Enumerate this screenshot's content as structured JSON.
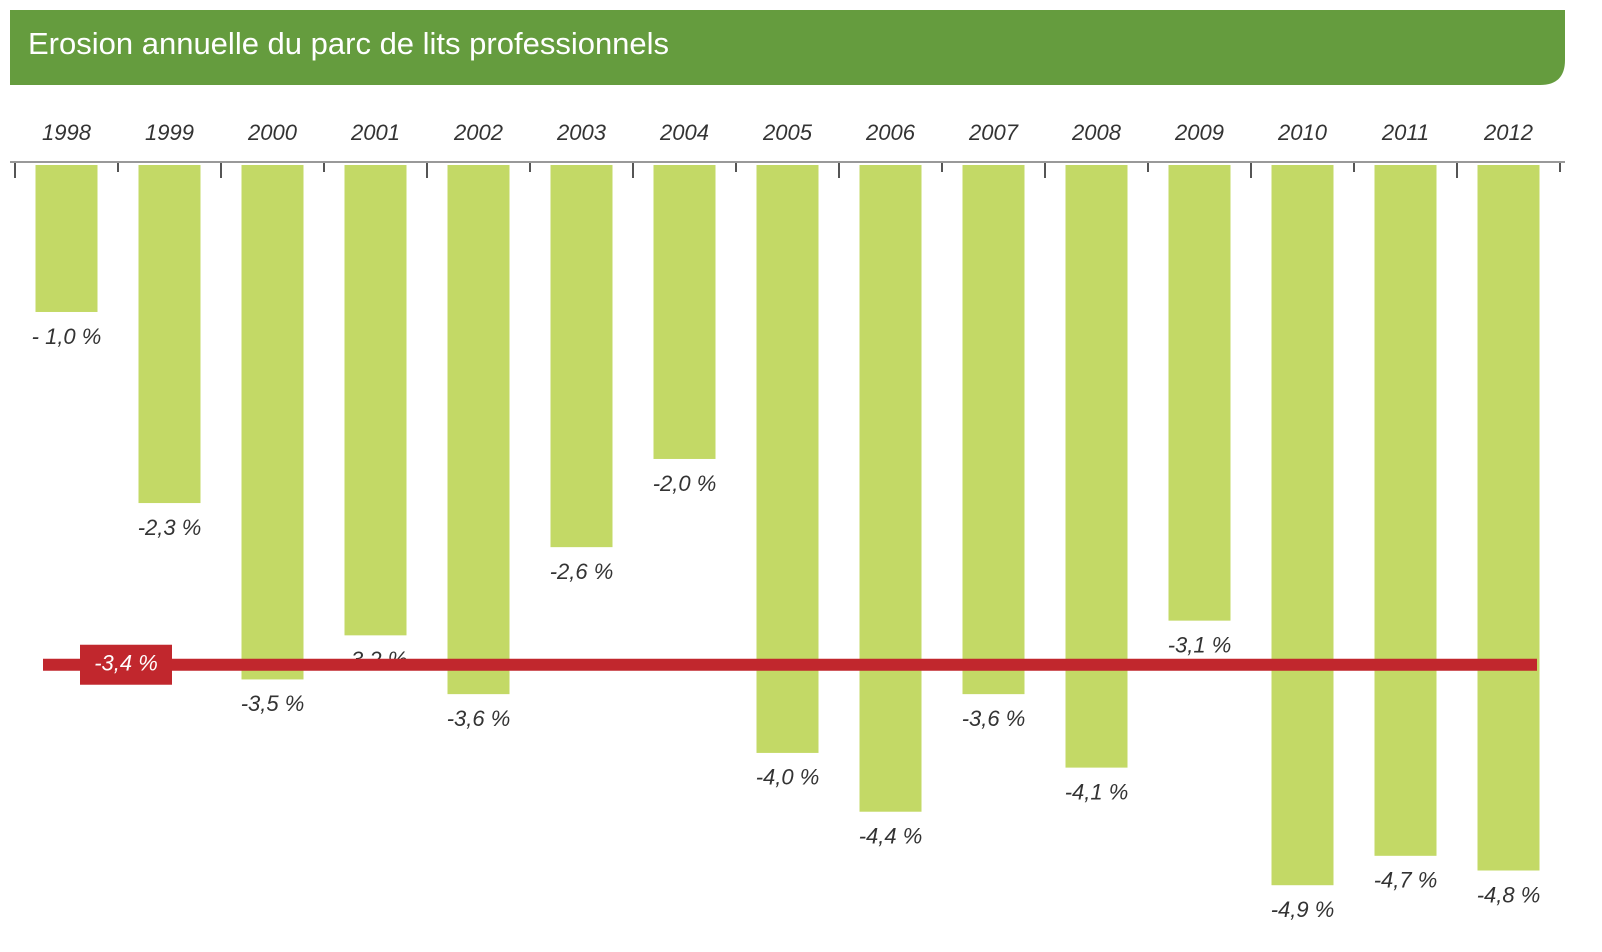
{
  "chart_data": {
    "type": "bar",
    "title": "Erosion annuelle du parc de lits professionnels",
    "categories": [
      "1998",
      "1999",
      "2000",
      "2001",
      "2002",
      "2003",
      "2004",
      "2005",
      "2006",
      "2007",
      "2008",
      "2009",
      "2010",
      "2011",
      "2012"
    ],
    "values": [
      -1.0,
      -2.3,
      -3.5,
      -3.2,
      -3.6,
      -2.6,
      -2.0,
      -4.0,
      -4.4,
      -3.6,
      -4.1,
      -3.1,
      -4.9,
      -4.7,
      -4.8
    ],
    "value_labels": [
      "- 1,0 %",
      "-2,3 %",
      "-3,5 %",
      "-3,2 %",
      "-3,6 %",
      "-2,6 %",
      "-2,0 %",
      "-4,0 %",
      "-4,4 %",
      "-3,6 %",
      "-4,1 %",
      "-3,1 %",
      "-4,9 %",
      "-4,7 %",
      "-4,8 %"
    ],
    "color": "#c3d966",
    "ylim": [
      -5.3,
      0
    ],
    "average": {
      "value": -3.4,
      "label": "-3,4 %",
      "color": "#c1272d"
    }
  }
}
